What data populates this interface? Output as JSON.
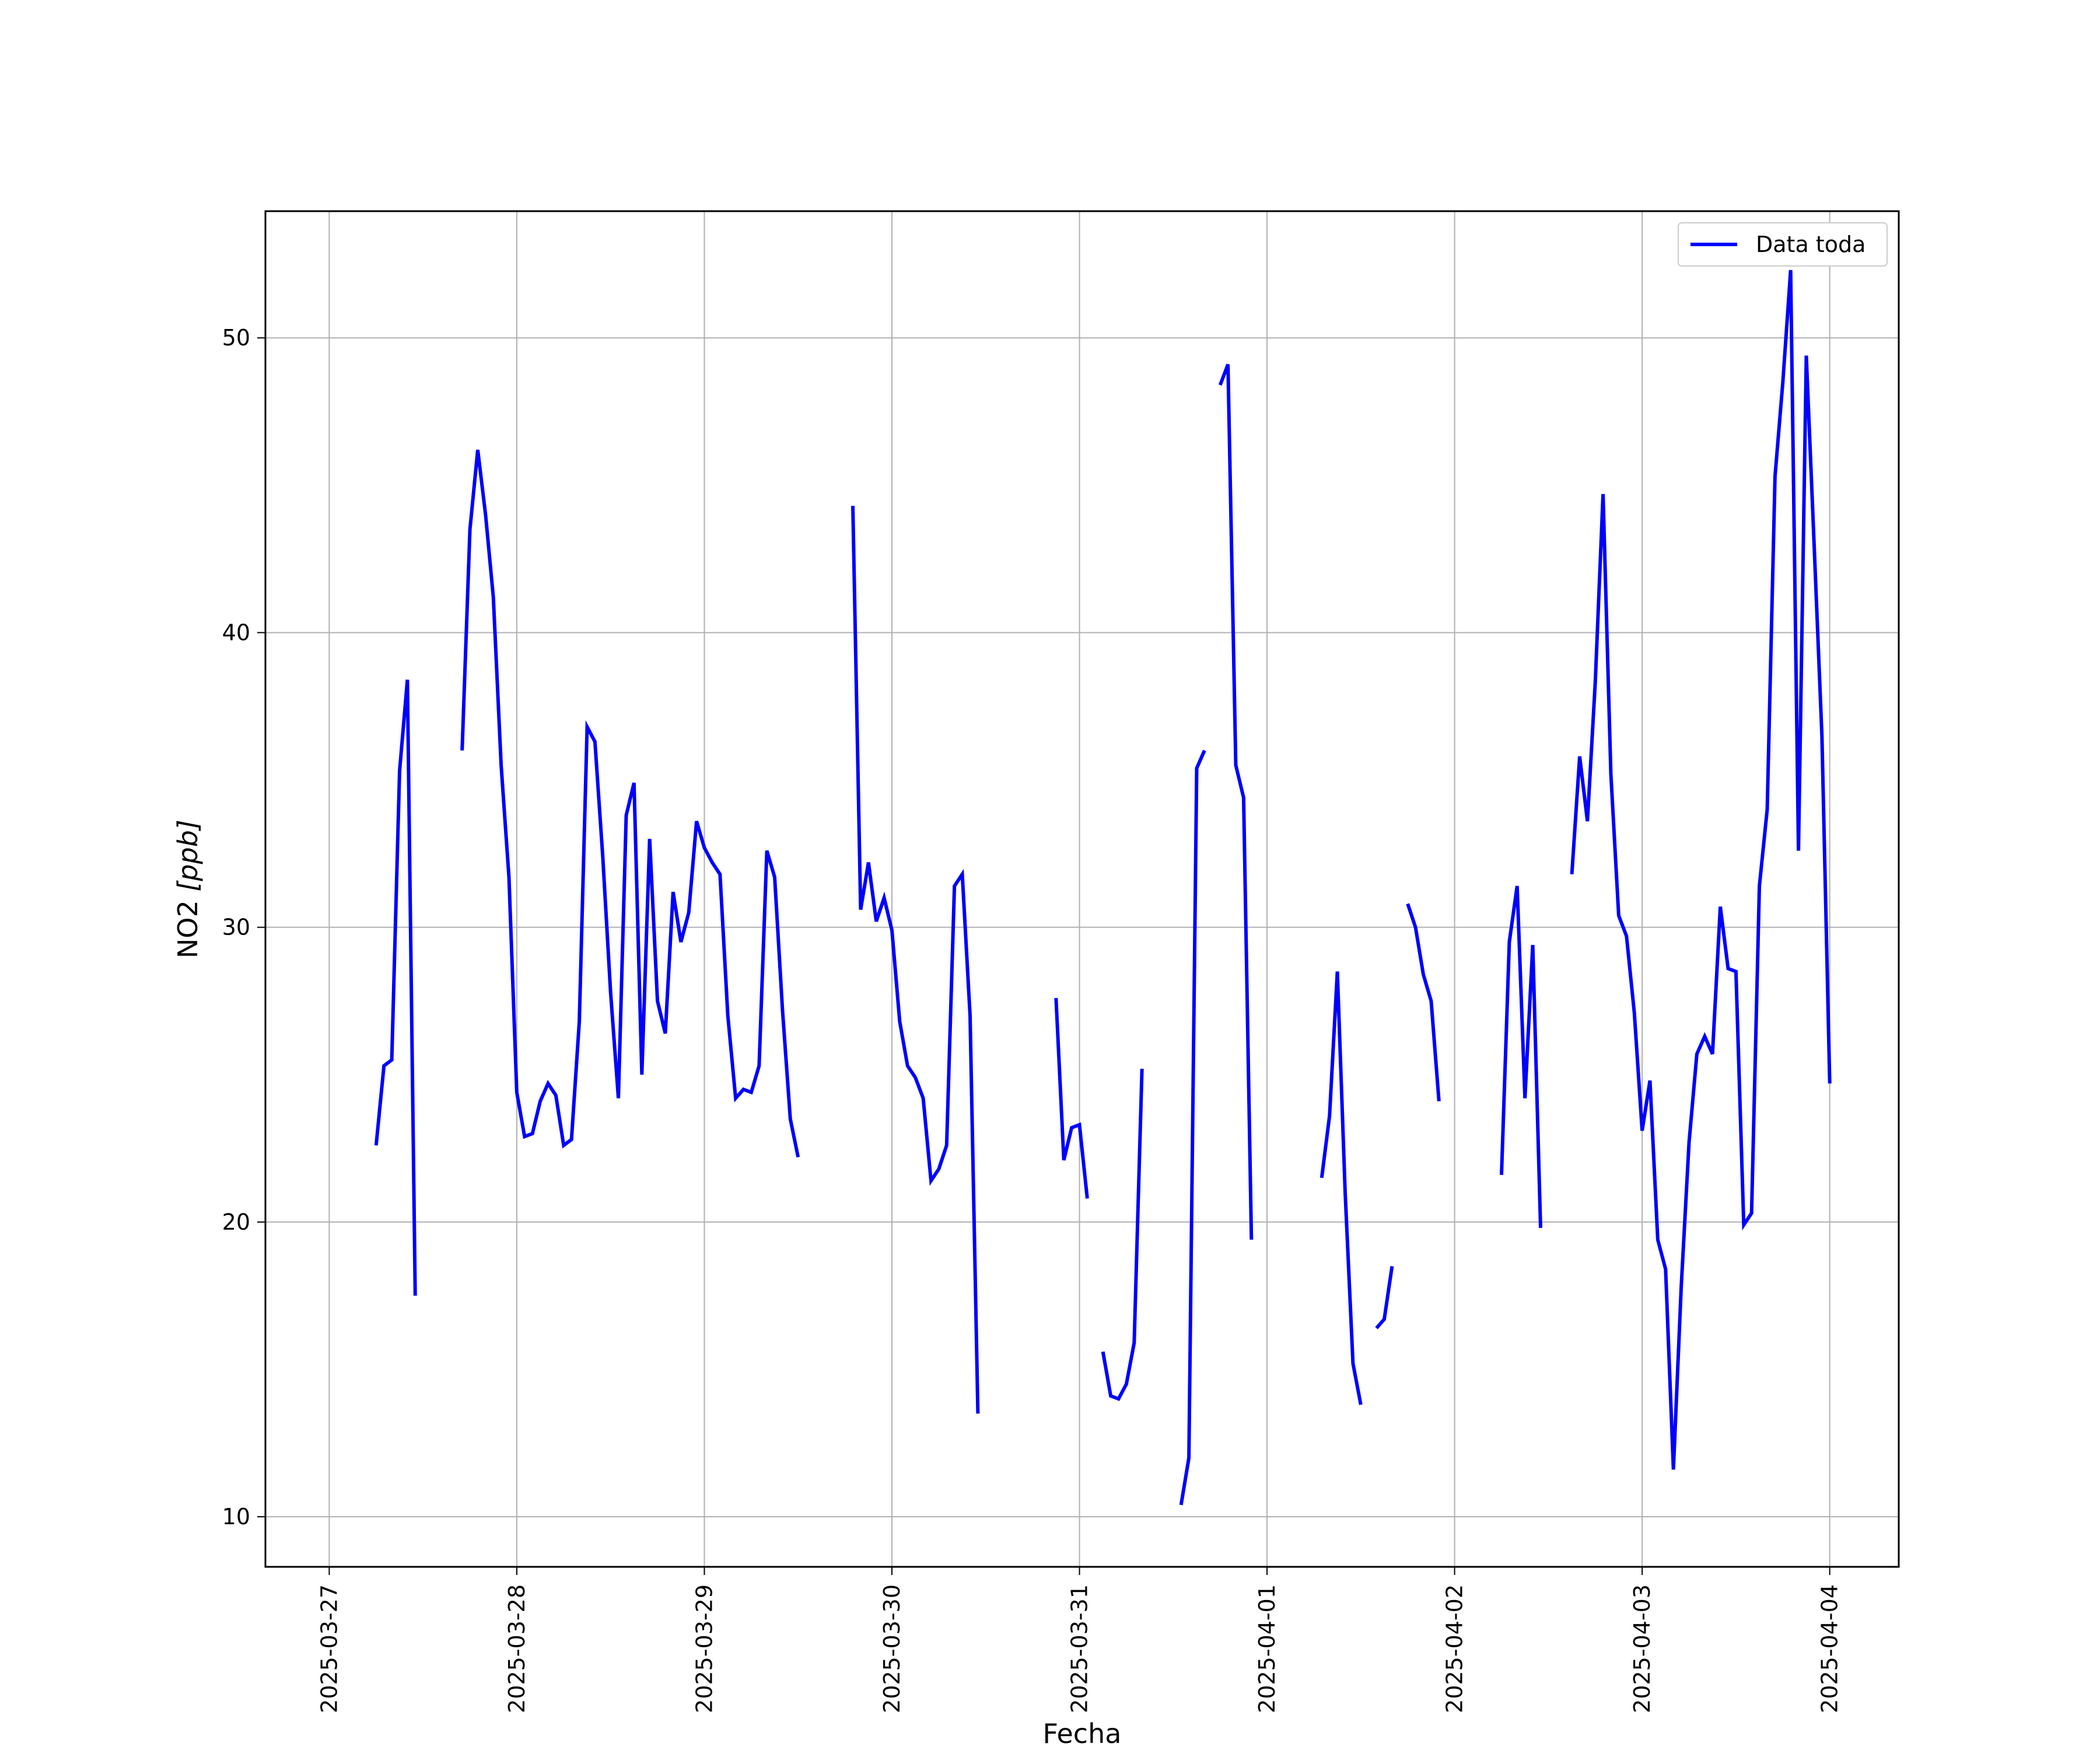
{
  "chart_data": {
    "type": "line",
    "xlabel": "Fecha",
    "ylabel_text": "NO2 ",
    "ylabel_unit": "[ppb]",
    "x_ticks": [
      "2025-03-27",
      "2025-03-28",
      "2025-03-29",
      "2025-03-30",
      "2025-03-31",
      "2025-04-01",
      "2025-04-02",
      "2025-04-03",
      "2025-04-04"
    ],
    "y_ticks": [
      10,
      20,
      30,
      40,
      50
    ],
    "xlim": [
      "2025-03-26T15:50",
      "2025-04-04T08:50"
    ],
    "ylim": [
      8.3,
      54.3
    ],
    "grid": true,
    "legend_position": "top-right",
    "colors": {
      "line": "#0000ff",
      "grid": "#b0b0b0",
      "axes": "#000000"
    },
    "series": [
      {
        "name": "Data toda",
        "segments": [
          [
            [
              "2025-03-27T06:00",
              22.6
            ],
            [
              "2025-03-27T07:00",
              25.3
            ],
            [
              "2025-03-27T08:00",
              25.5
            ],
            [
              "2025-03-27T09:00",
              35.3
            ],
            [
              "2025-03-27T10:00",
              38.4
            ],
            [
              "2025-03-27T11:00",
              17.5
            ]
          ],
          [
            [
              "2025-03-27T17:00",
              36.0
            ],
            [
              "2025-03-27T18:00",
              43.5
            ],
            [
              "2025-03-27T19:00",
              46.2
            ],
            [
              "2025-03-27T20:00",
              44.0
            ],
            [
              "2025-03-27T21:00",
              41.2
            ],
            [
              "2025-03-27T22:00",
              35.5
            ],
            [
              "2025-03-27T23:00",
              31.7
            ],
            [
              "2025-03-28T00:00",
              24.4
            ],
            [
              "2025-03-28T01:00",
              22.9
            ],
            [
              "2025-03-28T02:00",
              23.0
            ],
            [
              "2025-03-28T03:00",
              24.1
            ],
            [
              "2025-03-28T04:00",
              24.7
            ],
            [
              "2025-03-28T05:00",
              24.3
            ],
            [
              "2025-03-28T06:00",
              22.6
            ],
            [
              "2025-03-28T07:00",
              22.8
            ],
            [
              "2025-03-28T08:00",
              26.8
            ],
            [
              "2025-03-28T09:00",
              36.8
            ],
            [
              "2025-03-28T10:00",
              36.3
            ],
            [
              "2025-03-28T11:00",
              32.4
            ],
            [
              "2025-03-28T12:00",
              27.8
            ],
            [
              "2025-03-28T13:00",
              24.2
            ],
            [
              "2025-03-28T14:00",
              33.8
            ],
            [
              "2025-03-28T15:00",
              34.9
            ],
            [
              "2025-03-28T16:00",
              25.0
            ],
            [
              "2025-03-28T17:00",
              33.0
            ],
            [
              "2025-03-28T18:00",
              27.5
            ],
            [
              "2025-03-28T19:00",
              26.4
            ],
            [
              "2025-03-28T20:00",
              31.2
            ],
            [
              "2025-03-28T21:00",
              29.5
            ],
            [
              "2025-03-28T22:00",
              30.5
            ],
            [
              "2025-03-28T23:00",
              33.6
            ],
            [
              "2025-03-29T00:00",
              32.7
            ],
            [
              "2025-03-29T01:00",
              32.2
            ],
            [
              "2025-03-29T02:00",
              31.8
            ],
            [
              "2025-03-29T03:00",
              27.0
            ],
            [
              "2025-03-29T04:00",
              24.2
            ],
            [
              "2025-03-29T05:00",
              24.5
            ],
            [
              "2025-03-29T06:00",
              24.4
            ],
            [
              "2025-03-29T07:00",
              25.3
            ],
            [
              "2025-03-29T08:00",
              32.6
            ],
            [
              "2025-03-29T09:00",
              31.7
            ],
            [
              "2025-03-29T10:00",
              27.2
            ],
            [
              "2025-03-29T11:00",
              23.5
            ],
            [
              "2025-03-29T12:00",
              22.2
            ]
          ],
          [
            [
              "2025-03-29T19:00",
              44.3
            ],
            [
              "2025-03-29T20:00",
              30.6
            ],
            [
              "2025-03-29T21:00",
              32.2
            ],
            [
              "2025-03-29T22:00",
              30.2
            ],
            [
              "2025-03-29T23:00",
              31.0
            ],
            [
              "2025-03-30T00:00",
              29.9
            ],
            [
              "2025-03-30T01:00",
              26.8
            ],
            [
              "2025-03-30T02:00",
              25.3
            ],
            [
              "2025-03-30T03:00",
              24.9
            ],
            [
              "2025-03-30T04:00",
              24.2
            ],
            [
              "2025-03-30T05:00",
              21.4
            ],
            [
              "2025-03-30T06:00",
              21.8
            ],
            [
              "2025-03-30T07:00",
              22.6
            ],
            [
              "2025-03-30T08:00",
              31.4
            ],
            [
              "2025-03-30T09:00",
              31.8
            ],
            [
              "2025-03-30T10:00",
              27.0
            ],
            [
              "2025-03-30T11:00",
              13.5
            ]
          ],
          [
            [
              "2025-03-30T21:00",
              27.6
            ],
            [
              "2025-03-30T22:00",
              22.1
            ],
            [
              "2025-03-30T23:00",
              23.2
            ],
            [
              "2025-03-31T00:00",
              23.3
            ],
            [
              "2025-03-31T01:00",
              20.8
            ]
          ],
          [
            [
              "2025-03-31T03:00",
              15.6
            ],
            [
              "2025-03-31T04:00",
              14.1
            ],
            [
              "2025-03-31T05:00",
              14.0
            ],
            [
              "2025-03-31T06:00",
              14.5
            ],
            [
              "2025-03-31T07:00",
              15.9
            ],
            [
              "2025-03-31T08:00",
              25.2
            ]
          ],
          [
            [
              "2025-03-31T13:00",
              10.4
            ],
            [
              "2025-03-31T14:00",
              12.0
            ],
            [
              "2025-03-31T15:00",
              35.4
            ],
            [
              "2025-03-31T16:00",
              36.0
            ]
          ],
          [
            [
              "2025-03-31T18:00",
              48.4
            ],
            [
              "2025-03-31T19:00",
              49.1
            ],
            [
              "2025-03-31T20:00",
              35.5
            ],
            [
              "2025-03-31T21:00",
              34.4
            ],
            [
              "2025-03-31T22:00",
              19.4
            ]
          ],
          [
            [
              "2025-04-01T07:00",
              21.5
            ],
            [
              "2025-04-01T08:00",
              23.6
            ],
            [
              "2025-04-01T09:00",
              28.5
            ],
            [
              "2025-04-01T10:00",
              21.0
            ],
            [
              "2025-04-01T11:00",
              15.2
            ],
            [
              "2025-04-01T12:00",
              13.8
            ]
          ],
          [
            [
              "2025-04-01T14:00",
              16.4
            ],
            [
              "2025-04-01T15:00",
              16.7
            ],
            [
              "2025-04-01T16:00",
              18.5
            ]
          ],
          [
            [
              "2025-04-01T18:00",
              30.8
            ],
            [
              "2025-04-01T19:00",
              30.0
            ],
            [
              "2025-04-01T20:00",
              28.4
            ],
            [
              "2025-04-01T21:00",
              27.5
            ],
            [
              "2025-04-01T22:00",
              24.1
            ]
          ],
          [
            [
              "2025-04-02T06:00",
              21.6
            ],
            [
              "2025-04-02T07:00",
              29.5
            ],
            [
              "2025-04-02T08:00",
              31.4
            ],
            [
              "2025-04-02T09:00",
              24.2
            ],
            [
              "2025-04-02T10:00",
              29.4
            ],
            [
              "2025-04-02T11:00",
              19.8
            ]
          ],
          [
            [
              "2025-04-02T15:00",
              31.8
            ],
            [
              "2025-04-02T16:00",
              35.8
            ],
            [
              "2025-04-02T17:00",
              33.6
            ],
            [
              "2025-04-02T18:00",
              38.3
            ],
            [
              "2025-04-02T19:00",
              44.7
            ],
            [
              "2025-04-02T20:00",
              35.2
            ],
            [
              "2025-04-02T21:00",
              30.4
            ],
            [
              "2025-04-02T22:00",
              29.7
            ],
            [
              "2025-04-02T23:00",
              27.1
            ],
            [
              "2025-04-03T00:00",
              23.1
            ],
            [
              "2025-04-03T01:00",
              24.8
            ],
            [
              "2025-04-03T02:00",
              19.4
            ],
            [
              "2025-04-03T03:00",
              18.4
            ],
            [
              "2025-04-03T04:00",
              11.6
            ],
            [
              "2025-04-03T05:00",
              17.8
            ],
            [
              "2025-04-03T06:00",
              22.7
            ],
            [
              "2025-04-03T07:00",
              25.7
            ],
            [
              "2025-04-03T08:00",
              26.3
            ],
            [
              "2025-04-03T09:00",
              25.7
            ],
            [
              "2025-04-03T10:00",
              30.7
            ],
            [
              "2025-04-03T11:00",
              28.6
            ],
            [
              "2025-04-03T12:00",
              28.5
            ],
            [
              "2025-04-03T13:00",
              19.9
            ],
            [
              "2025-04-03T14:00",
              20.3
            ],
            [
              "2025-04-03T15:00",
              31.4
            ],
            [
              "2025-04-03T16:00",
              34.0
            ],
            [
              "2025-04-03T17:00",
              45.3
            ],
            [
              "2025-04-03T18:00",
              48.5
            ],
            [
              "2025-04-03T19:00",
              52.3
            ],
            [
              "2025-04-03T20:00",
              32.6
            ],
            [
              "2025-04-03T21:00",
              49.4
            ],
            [
              "2025-04-03T22:00",
              43.0
            ],
            [
              "2025-04-03T23:00",
              36.5
            ],
            [
              "2025-04-04T00:00",
              24.7
            ]
          ]
        ]
      }
    ]
  }
}
